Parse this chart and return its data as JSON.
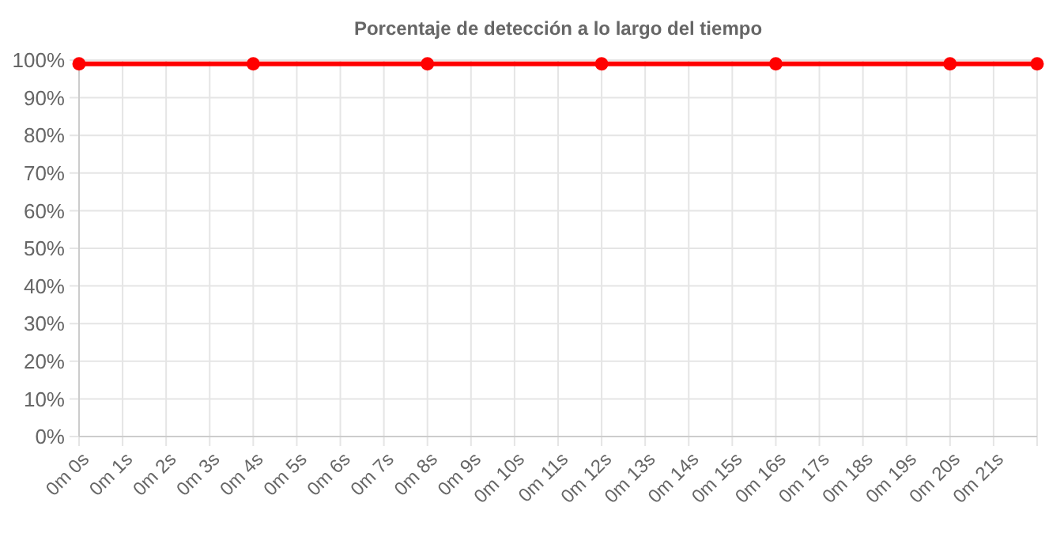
{
  "chart_data": {
    "type": "line",
    "title": "Porcentaje de detección a lo largo del tiempo",
    "categories": [
      "0m 0s",
      "0m 1s",
      "0m 2s",
      "0m 3s",
      "0m 4s",
      "0m 5s",
      "0m 6s",
      "0m 7s",
      "0m 8s",
      "0m 9s",
      "0m 10s",
      "0m 11s",
      "0m 12s",
      "0m 13s",
      "0m 14s",
      "0m 15s",
      "0m 16s",
      "0m 17s",
      "0m 18s",
      "0m 19s",
      "0m 20s",
      "0m 21s",
      null
    ],
    "series": [
      {
        "color": "#ff0000",
        "values": [
          99,
          null,
          null,
          null,
          99,
          null,
          null,
          null,
          99,
          null,
          null,
          null,
          99,
          null,
          null,
          null,
          99,
          null,
          null,
          null,
          99,
          null,
          99
        ]
      }
    ],
    "ylim": [
      0,
      100
    ],
    "yticks": [
      {
        "value": 0,
        "label": "0%"
      },
      {
        "value": 10,
        "label": "10%"
      },
      {
        "value": 20,
        "label": "20%"
      },
      {
        "value": 30,
        "label": "30%"
      },
      {
        "value": 40,
        "label": "40%"
      },
      {
        "value": 50,
        "label": "50%"
      },
      {
        "value": 60,
        "label": "60%"
      },
      {
        "value": 70,
        "label": "70%"
      },
      {
        "value": 80,
        "label": "80%"
      },
      {
        "value": 90,
        "label": "90%"
      },
      {
        "value": 100,
        "label": "100%"
      }
    ],
    "grid": true,
    "marker": "circle",
    "line_style": "solid"
  }
}
